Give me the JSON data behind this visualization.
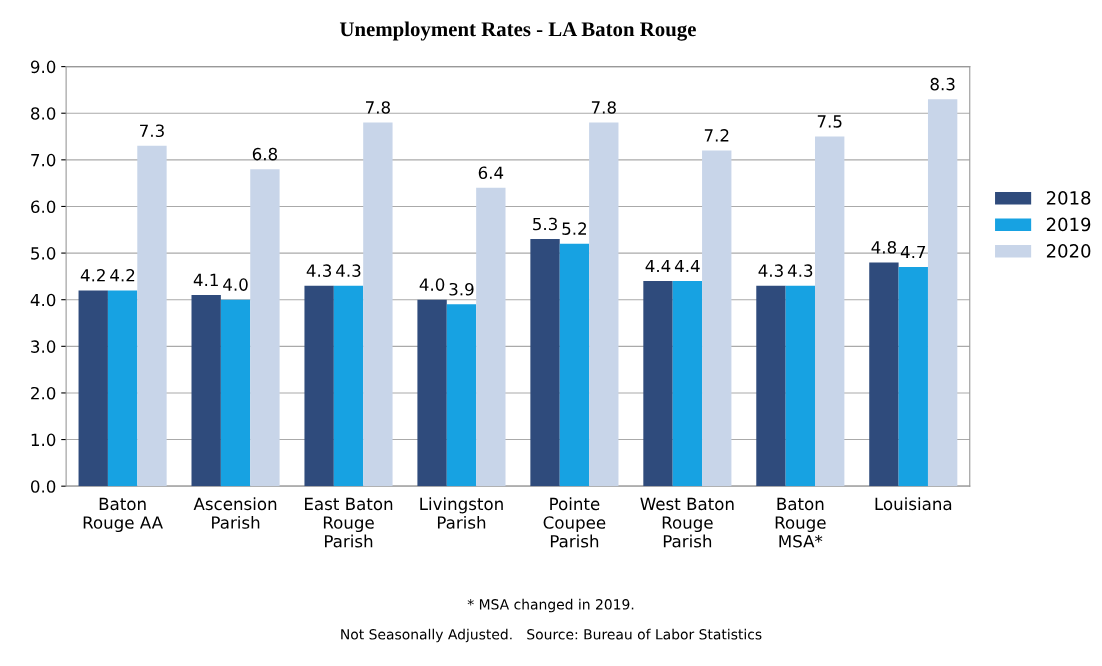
{
  "chart_data": {
    "type": "bar",
    "title": "Unemployment Rates - LA Baton Rouge",
    "categories": [
      "Baton\nRouge AA",
      "Ascension\nParish",
      "East Baton\nRouge\nParish",
      "Livingston\nParish",
      "Pointe\nCoupee\nParish",
      "West Baton\nRouge\nParish",
      "Baton\nRouge\nMSA*",
      "Louisiana"
    ],
    "series": [
      {
        "name": "2018",
        "color": "#2f4b7c",
        "values": [
          4.2,
          4.1,
          4.3,
          4.0,
          5.3,
          4.4,
          4.3,
          4.8
        ],
        "value_labels": [
          "4.2",
          "4.1",
          "4.3",
          "4.0",
          "5.3",
          "4.4",
          "4.3",
          "4.8"
        ]
      },
      {
        "name": "2019",
        "color": "#17a2e2",
        "values": [
          4.2,
          4.0,
          4.3,
          3.9,
          5.2,
          4.4,
          4.3,
          4.7
        ],
        "value_labels": [
          "4.2",
          "4.0",
          "4.3",
          "3.9",
          "5.2",
          "4.4",
          "4.3",
          "4.7"
        ]
      },
      {
        "name": "2020",
        "color": "#c8d5e9",
        "values": [
          7.3,
          6.8,
          7.8,
          6.4,
          7.8,
          7.2,
          7.5,
          8.3
        ],
        "value_labels": [
          "7.3",
          "6.8",
          "7.8",
          "6.4",
          "7.8",
          "7.2",
          "7.5",
          "8.3"
        ]
      }
    ],
    "ylim": [
      0,
      9
    ],
    "yticks": [
      {
        "value": 0,
        "label": "0.0"
      },
      {
        "value": 1,
        "label": "1.0"
      },
      {
        "value": 2,
        "label": "2.0"
      },
      {
        "value": 3,
        "label": "3.0"
      },
      {
        "value": 4,
        "label": "4.0"
      },
      {
        "value": 5,
        "label": "5.0"
      },
      {
        "value": 6,
        "label": "6.0"
      },
      {
        "value": 7,
        "label": "7.0"
      },
      {
        "value": 8,
        "label": "8.0"
      },
      {
        "value": 9,
        "label": "9.0"
      }
    ],
    "grid": "y",
    "legend": "right",
    "annotations": [
      "* MSA changed in 2019.",
      "Not Seasonally Adjusted.   Source: Bureau of Labor Statistics"
    ]
  }
}
